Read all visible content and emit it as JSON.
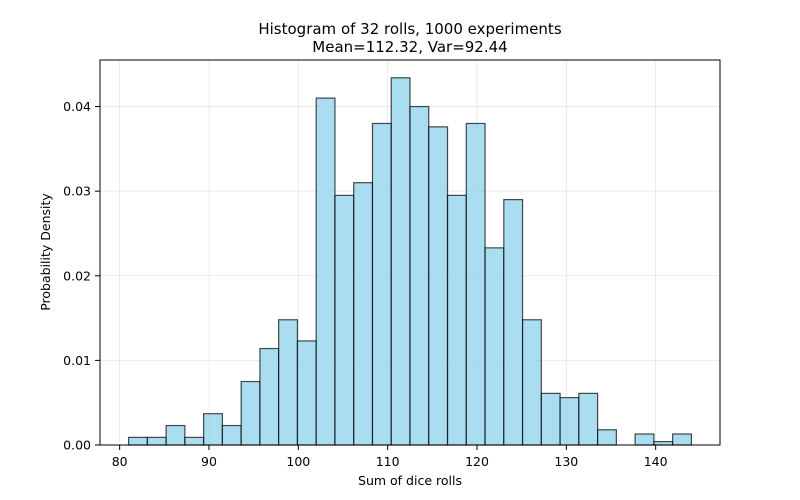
{
  "chart_data": {
    "type": "bar",
    "title_line1": "Histogram of 32 rolls, 1000 experiments",
    "title_line2": "Mean=112.32, Var=92.44",
    "xlabel": "Sum of dice rolls",
    "ylabel": "Probability Density",
    "xlim": [
      77.8,
      147.2
    ],
    "ylim": [
      0,
      0.0455
    ],
    "xticks": [
      80,
      90,
      100,
      110,
      120,
      130,
      140
    ],
    "yticks": [
      0.0,
      0.01,
      0.02,
      0.03,
      0.04
    ],
    "ytick_labels": [
      "0.00",
      "0.01",
      "0.02",
      "0.03",
      "0.04"
    ],
    "bin_edges": [
      81,
      83.1,
      85.2,
      87.3,
      89.4,
      91.5,
      93.6,
      95.7,
      97.8,
      99.9,
      102.0,
      104.1,
      106.2,
      108.3,
      110.4,
      112.5,
      114.6,
      116.7,
      118.8,
      120.9,
      123.0,
      125.1,
      127.2,
      129.3,
      131.4,
      133.5,
      135.6,
      137.7,
      139.8,
      141.9,
      144.0
    ],
    "values": [
      0.0009,
      0.0009,
      0.0023,
      0.0009,
      0.0037,
      0.0023,
      0.0075,
      0.0114,
      0.0148,
      0.0123,
      0.041,
      0.0295,
      0.031,
      0.038,
      0.0434,
      0.04,
      0.0376,
      0.0295,
      0.038,
      0.0233,
      0.029,
      0.0148,
      0.0061,
      0.0056,
      0.0061,
      0.0018,
      0.0,
      0.0013,
      0.0004,
      0.0013
    ],
    "bar_color": "#87ceeb",
    "grid": true
  }
}
